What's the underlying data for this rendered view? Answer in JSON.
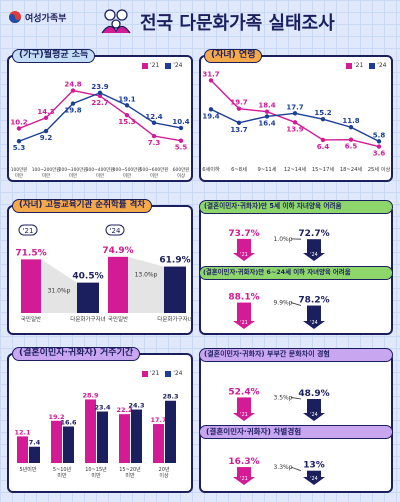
{
  "colors": {
    "pink": "#d21b94",
    "navy": "#1c1f5e",
    "blue": "#1c3f95",
    "lightpink": "#f3b9dd",
    "light_bg": "#dfe9fb"
  },
  "header": {
    "logo_text": "여성가족부",
    "title": "전국 다문화가족 실태조사",
    "logo_icon": "ministry-logo-icon",
    "family_icon": "family-icon"
  },
  "legend": {
    "y21": "'21",
    "y24": "'24"
  },
  "income": {
    "title": "(가구)월평균 소득"
  },
  "age": {
    "title": "(자녀) 연령"
  },
  "higher_edu": {
    "title": "(자녀) 고등교육기관 순취학률 격차",
    "badge21": "'21",
    "badge24": "'24"
  },
  "difficulty": {
    "title1": "(결혼이민자·귀화자)만 5세 이하 자녀양육 어려움",
    "title2": "(결혼이민자·귀화자)만 6~24세 이하 자녀양육 어려움"
  },
  "residence": {
    "title": "(결혼이민자·귀화자) 거주기간"
  },
  "culture": {
    "title1": "(결혼이민자·귀화자) 부부간 문화차이 경험",
    "title2": "(결혼이민자·귀화자) 차별경험"
  },
  "chart_data": [
    {
      "type": "line",
      "id": "income",
      "categories": [
        "100만원 미만",
        "100~200만원 미만",
        "200~300만원 미만",
        "300~400만원 미만",
        "400~500만원 미만",
        "500~600만원 미만",
        "600만원 이상"
      ],
      "series": [
        {
          "name": "'21",
          "values": [
            10.2,
            14.3,
            24.8,
            22.7,
            15.3,
            7.3,
            5.5
          ]
        },
        {
          "name": "'24",
          "values": [
            5.3,
            9.2,
            19.8,
            23.9,
            19.1,
            12.4,
            10.4
          ]
        }
      ]
    },
    {
      "type": "line",
      "id": "child_age",
      "categories": [
        "6세이하",
        "6~8세",
        "9~11세",
        "12~14세",
        "15~17세",
        "18~24세",
        "25세 이상"
      ],
      "series": [
        {
          "name": "'21",
          "values": [
            31.7,
            19.7,
            18.4,
            13.9,
            6.4,
            6.5,
            3.6
          ]
        },
        {
          "name": "'24",
          "values": [
            19.4,
            13.7,
            16.4,
            17.7,
            15.2,
            11.8,
            5.8
          ]
        }
      ]
    },
    {
      "type": "bar",
      "id": "higher_edu_gap",
      "categories": [
        "국민일반",
        "다문화가구자녀"
      ],
      "series": [
        {
          "name": "'21",
          "values": [
            71.5,
            40.5
          ],
          "gap": "31.0%p"
        },
        {
          "name": "'24",
          "values": [
            74.9,
            61.9
          ],
          "gap": "13.0%p"
        }
      ],
      "unit": "%"
    },
    {
      "type": "bar",
      "id": "parenting_under5",
      "categories": [
        "'21",
        "'24"
      ],
      "values": [
        73.7,
        72.7
      ],
      "change": "1.0%p",
      "unit": "%"
    },
    {
      "type": "bar",
      "id": "parenting_6_24",
      "categories": [
        "'21",
        "'24"
      ],
      "values": [
        88.1,
        78.2
      ],
      "change": "9.9%p",
      "unit": "%"
    },
    {
      "type": "bar",
      "id": "residence_period",
      "categories": [
        "5년미만",
        "5~10년 미만",
        "10~15년 미만",
        "15~20년 미만",
        "20년 이상"
      ],
      "series": [
        {
          "name": "'21",
          "values": [
            12.1,
            19.2,
            28.9,
            22.2,
            17.7
          ]
        },
        {
          "name": "'24",
          "values": [
            7.4,
            16.6,
            23.4,
            24.3,
            28.3
          ]
        }
      ]
    },
    {
      "type": "bar",
      "id": "cultural_difference",
      "categories": [
        "'21",
        "'24"
      ],
      "values": [
        52.4,
        48.9
      ],
      "change": "3.5%p",
      "unit": "%"
    },
    {
      "type": "bar",
      "id": "discrimination",
      "categories": [
        "'21",
        "'24"
      ],
      "values": [
        16.3,
        13.0
      ],
      "change": "3.3%p",
      "unit": "%"
    }
  ]
}
